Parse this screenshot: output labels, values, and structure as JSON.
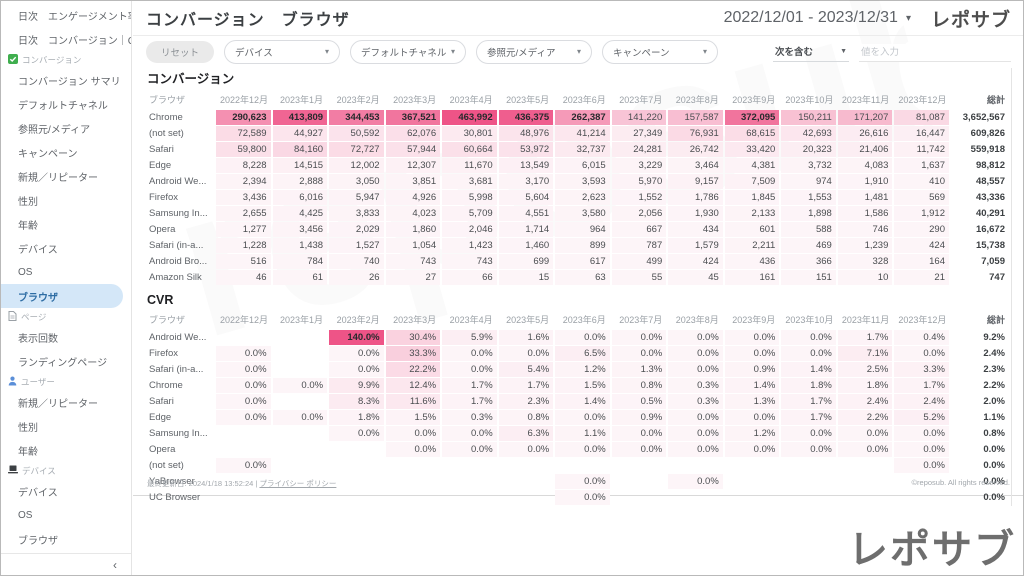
{
  "header": {
    "title": "コンバージョン　ブラウザ",
    "date_range": "2022/12/01 - 2023/12/31",
    "logo": "レポサブ"
  },
  "icons": {
    "caret_down": "▾",
    "caret_down_filled": "▼",
    "collapse_chevron": "‹"
  },
  "sidebar": {
    "items": [
      {
        "label": "日次　エンゲージメント率...",
        "type": "item"
      },
      {
        "label": "日次　コンバージョン｜CVR",
        "type": "item"
      },
      {
        "label": "コンバージョン",
        "type": "section",
        "icon": "check-square-icon"
      },
      {
        "label": "コンバージョン サマリ",
        "type": "item"
      },
      {
        "label": "デフォルトチャネル",
        "type": "item"
      },
      {
        "label": "参照元/メディア",
        "type": "item"
      },
      {
        "label": "キャンペーン",
        "type": "item"
      },
      {
        "label": "新規／リピーター",
        "type": "item"
      },
      {
        "label": "性別",
        "type": "item"
      },
      {
        "label": "年齢",
        "type": "item"
      },
      {
        "label": "デバイス",
        "type": "item"
      },
      {
        "label": "OS",
        "type": "item"
      },
      {
        "label": "ブラウザ",
        "type": "item",
        "selected": true
      },
      {
        "label": "ページ",
        "type": "section",
        "icon": "page-icon"
      },
      {
        "label": "表示回数",
        "type": "item"
      },
      {
        "label": "ランディングページ",
        "type": "item"
      },
      {
        "label": "ユーザー",
        "type": "section",
        "icon": "user-icon"
      },
      {
        "label": "新規／リピーター",
        "type": "item"
      },
      {
        "label": "性別",
        "type": "item"
      },
      {
        "label": "年齢",
        "type": "item"
      },
      {
        "label": "デバイス",
        "type": "section",
        "icon": "device-icon"
      },
      {
        "label": "デバイス",
        "type": "item"
      },
      {
        "label": "OS",
        "type": "item"
      },
      {
        "label": "ブラウザ",
        "type": "item"
      }
    ]
  },
  "filters": {
    "reset_label": "リセット",
    "dropdowns": [
      "デバイス",
      "デフォルトチャネル",
      "参照元/メディア",
      "キャンペーン"
    ],
    "match_label": "次を含む",
    "input_placeholder": "値を入力"
  },
  "chart_data": [
    {
      "type": "heatmap",
      "title": "コンバージョン",
      "columns": [
        "ブラウザ",
        "2022年12月",
        "2023年1月",
        "2023年2月",
        "2023年3月",
        "2023年4月",
        "2023年5月",
        "2023年6月",
        "2023年7月",
        "2023年8月",
        "2023年9月",
        "2023年10月",
        "2023年11月",
        "2023年12月",
        "総計"
      ],
      "rows": [
        {
          "label": "Chrome",
          "values": [
            "290,623",
            "413,809",
            "344,453",
            "367,521",
            "463,992",
            "436,375",
            "262,387",
            "141,220",
            "157,587",
            "372,095",
            "150,211",
            "171,207",
            "81,087",
            "3,652,567"
          ]
        },
        {
          "label": "(not set)",
          "values": [
            "72,589",
            "44,927",
            "50,592",
            "62,076",
            "30,801",
            "48,976",
            "41,214",
            "27,349",
            "76,931",
            "68,615",
            "42,693",
            "26,616",
            "16,447",
            "609,826"
          ]
        },
        {
          "label": "Safari",
          "values": [
            "59,800",
            "84,160",
            "72,727",
            "57,944",
            "60,664",
            "53,972",
            "32,737",
            "24,281",
            "26,742",
            "33,420",
            "20,323",
            "21,406",
            "11,742",
            "559,918"
          ]
        },
        {
          "label": "Edge",
          "values": [
            "8,228",
            "14,515",
            "12,002",
            "12,307",
            "11,670",
            "13,549",
            "6,015",
            "3,229",
            "3,464",
            "4,381",
            "3,732",
            "4,083",
            "1,637",
            "98,812"
          ]
        },
        {
          "label": "Android We...",
          "values": [
            "2,394",
            "2,888",
            "3,050",
            "3,851",
            "3,681",
            "3,170",
            "3,593",
            "5,970",
            "9,157",
            "7,509",
            "974",
            "1,910",
            "410",
            "48,557"
          ]
        },
        {
          "label": "Firefox",
          "values": [
            "3,436",
            "6,016",
            "5,947",
            "4,926",
            "5,998",
            "5,604",
            "2,623",
            "1,552",
            "1,786",
            "1,845",
            "1,553",
            "1,481",
            "569",
            "43,336"
          ]
        },
        {
          "label": "Samsung In...",
          "values": [
            "2,655",
            "4,425",
            "3,833",
            "4,023",
            "5,709",
            "4,551",
            "3,580",
            "2,056",
            "1,930",
            "2,133",
            "1,898",
            "1,586",
            "1,912",
            "40,291"
          ]
        },
        {
          "label": "Opera",
          "values": [
            "1,277",
            "3,456",
            "2,029",
            "1,860",
            "2,046",
            "1,714",
            "964",
            "667",
            "434",
            "601",
            "588",
            "746",
            "290",
            "16,672"
          ]
        },
        {
          "label": "Safari (in-a...",
          "values": [
            "1,228",
            "1,438",
            "1,527",
            "1,054",
            "1,423",
            "1,460",
            "899",
            "787",
            "1,579",
            "2,211",
            "469",
            "1,239",
            "424",
            "15,738"
          ]
        },
        {
          "label": "Android Bro...",
          "values": [
            "516",
            "784",
            "740",
            "743",
            "743",
            "699",
            "617",
            "499",
            "424",
            "436",
            "366",
            "328",
            "164",
            "7,059"
          ]
        },
        {
          "label": "Amazon Silk",
          "values": [
            "46",
            "61",
            "26",
            "27",
            "66",
            "15",
            "63",
            "55",
            "45",
            "161",
            "151",
            "10",
            "21",
            "747"
          ]
        }
      ]
    },
    {
      "type": "heatmap",
      "title": "CVR",
      "columns": [
        "ブラウザ",
        "2022年12月",
        "2023年1月",
        "2023年2月",
        "2023年3月",
        "2023年4月",
        "2023年5月",
        "2023年6月",
        "2023年7月",
        "2023年8月",
        "2023年9月",
        "2023年10月",
        "2023年11月",
        "2023年12月",
        "総計"
      ],
      "rows": [
        {
          "label": "Android We...",
          "values": [
            "",
            "",
            "140.0%",
            "30.4%",
            "5.9%",
            "1.6%",
            "0.0%",
            "0.0%",
            "0.0%",
            "0.0%",
            "0.0%",
            "1.7%",
            "0.4%",
            "9.2%"
          ]
        },
        {
          "label": "Firefox",
          "values": [
            "0.0%",
            "",
            "0.0%",
            "33.3%",
            "0.0%",
            "0.0%",
            "6.5%",
            "0.0%",
            "0.0%",
            "0.0%",
            "0.0%",
            "7.1%",
            "0.0%",
            "2.4%"
          ]
        },
        {
          "label": "Safari (in-a...",
          "values": [
            "0.0%",
            "",
            "0.0%",
            "22.2%",
            "0.0%",
            "5.4%",
            "1.2%",
            "1.3%",
            "0.0%",
            "0.9%",
            "1.4%",
            "2.5%",
            "3.3%",
            "2.3%"
          ]
        },
        {
          "label": "Chrome",
          "values": [
            "0.0%",
            "0.0%",
            "9.9%",
            "12.4%",
            "1.7%",
            "1.7%",
            "1.5%",
            "0.8%",
            "0.3%",
            "1.4%",
            "1.8%",
            "1.8%",
            "1.7%",
            "2.2%"
          ]
        },
        {
          "label": "Safari",
          "values": [
            "0.0%",
            "",
            "8.3%",
            "11.6%",
            "1.7%",
            "2.3%",
            "1.4%",
            "0.5%",
            "0.3%",
            "1.3%",
            "1.7%",
            "2.4%",
            "2.4%",
            "2.0%"
          ]
        },
        {
          "label": "Edge",
          "values": [
            "0.0%",
            "0.0%",
            "1.8%",
            "1.5%",
            "0.3%",
            "0.8%",
            "0.0%",
            "0.9%",
            "0.0%",
            "0.0%",
            "1.7%",
            "2.2%",
            "5.2%",
            "1.1%"
          ]
        },
        {
          "label": "Samsung In...",
          "values": [
            "",
            "",
            "0.0%",
            "0.0%",
            "0.0%",
            "6.3%",
            "1.1%",
            "0.0%",
            "0.0%",
            "1.2%",
            "0.0%",
            "0.0%",
            "0.0%",
            "0.8%"
          ]
        },
        {
          "label": "Opera",
          "values": [
            "",
            "",
            "",
            "0.0%",
            "0.0%",
            "0.0%",
            "0.0%",
            "0.0%",
            "0.0%",
            "0.0%",
            "0.0%",
            "0.0%",
            "0.0%",
            "0.0%"
          ]
        },
        {
          "label": "(not set)",
          "values": [
            "0.0%",
            "",
            "",
            "",
            "",
            "",
            "",
            "",
            "",
            "",
            "",
            "",
            "0.0%",
            "0.0%"
          ]
        },
        {
          "label": "YaBrowser",
          "values": [
            "",
            "",
            "",
            "",
            "",
            "",
            "0.0%",
            "",
            "0.0%",
            "",
            "",
            "",
            "",
            "0.0%"
          ]
        },
        {
          "label": "UC Browser",
          "values": [
            "",
            "",
            "",
            "",
            "",
            "",
            "0.0%",
            "",
            "",
            "",
            "",
            "",
            "",
            "0.0%"
          ]
        }
      ]
    }
  ],
  "footer": {
    "last_updated": "最終更新日: 2024/1/18 13:52:24",
    "privacy_link": "プライバシー ポリシー",
    "copyright": "©reposub. All rights reserved.",
    "big_logo": "レポサブ"
  },
  "watermark_text": "reposub",
  "colors": {
    "heat_low": "#fdf5f8",
    "heat_high": "#ee5487",
    "selected_item_bg": "#d4e7f8",
    "selected_item_text": "#2e6da4",
    "section_check_green": "#3fae4e",
    "section_user_blue": "#5b8fd8",
    "section_device_dark": "#3c4043"
  }
}
